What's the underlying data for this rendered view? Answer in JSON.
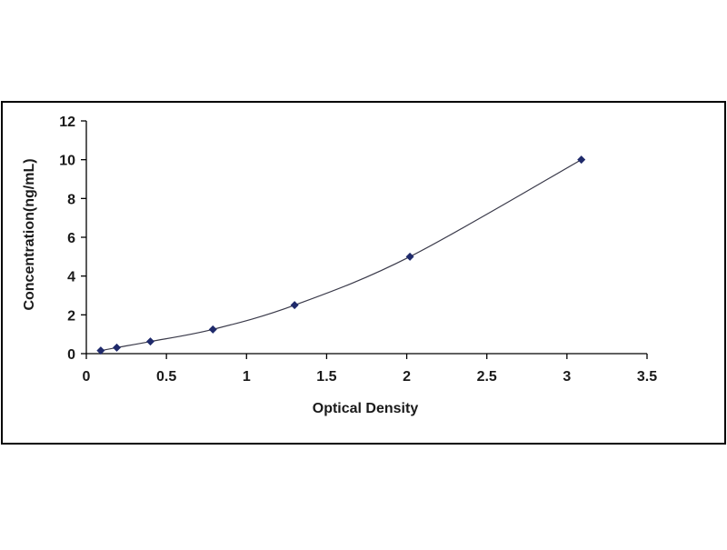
{
  "chart_data": {
    "type": "scatter",
    "title": "",
    "xlabel": "Optical Density",
    "ylabel": "Concentration(ng/mL)",
    "xlim": [
      0,
      3.5
    ],
    "ylim": [
      0,
      12
    ],
    "x_ticks": [
      "0",
      "0.5",
      "1",
      "1.5",
      "2",
      "2.5",
      "3",
      "3.5"
    ],
    "y_ticks": [
      "0",
      "2",
      "4",
      "6",
      "8",
      "10",
      "12"
    ],
    "grid": false,
    "legend": "none",
    "series": [
      {
        "x": [
          0.09,
          0.19,
          0.4,
          0.79,
          1.3,
          2.02,
          3.09
        ],
        "y": [
          0.156,
          0.312,
          0.625,
          1.25,
          2.5,
          5.0,
          10.0
        ],
        "marker": "diamond",
        "fit": "smooth-curve",
        "color": "#1f2a6b"
      }
    ],
    "colors": {
      "points": "#1f2a6b",
      "curve": "#3a3a4a",
      "axes": "#000000",
      "frame": "#000000"
    }
  }
}
